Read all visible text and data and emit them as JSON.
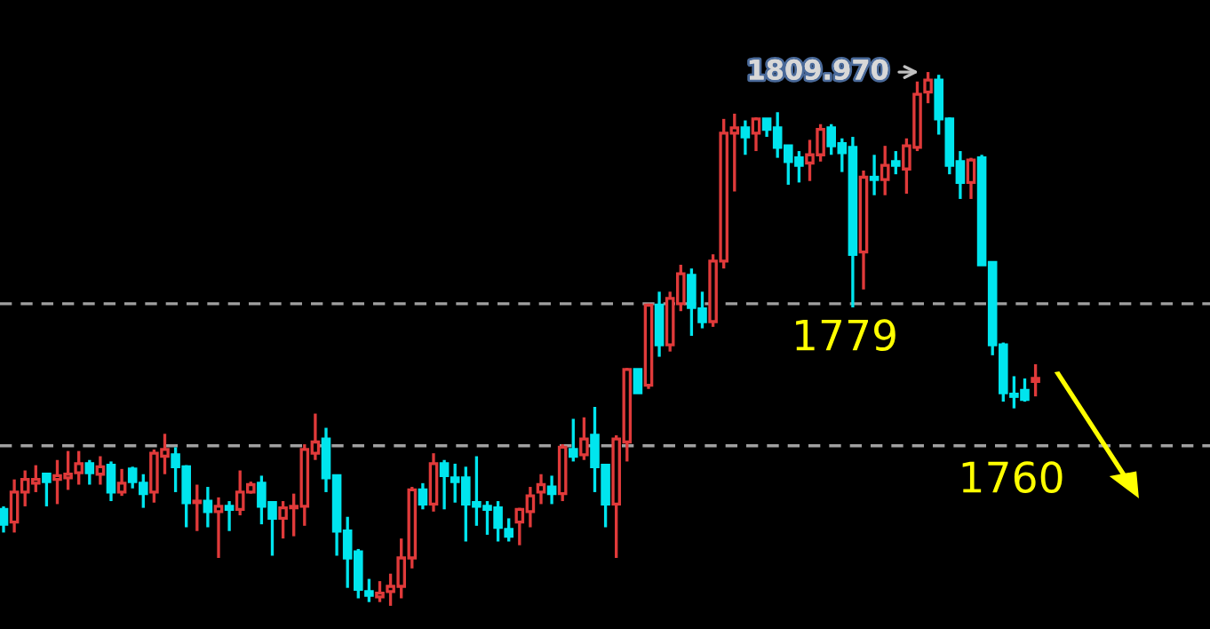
{
  "chart_data": {
    "type": "candlestick",
    "categories": [
      null,
      null,
      null,
      null,
      null,
      null,
      null,
      null,
      null,
      null,
      null,
      null,
      null,
      null,
      null,
      null,
      null,
      null,
      null,
      null,
      null,
      null,
      null,
      null,
      null,
      null,
      null,
      null,
      null,
      null,
      null,
      null,
      null,
      null,
      null,
      null,
      null,
      null,
      null,
      null,
      null,
      null,
      null,
      null,
      null,
      null,
      null,
      null,
      null,
      null,
      null,
      null,
      null,
      null,
      null,
      null,
      null,
      null,
      null,
      null,
      null,
      null,
      null,
      null,
      null,
      null,
      null,
      null,
      null,
      null,
      null,
      null,
      null,
      null,
      null,
      null,
      null,
      null,
      null,
      null,
      null,
      null,
      null,
      null,
      null,
      null,
      null,
      null,
      null,
      null,
      null,
      null,
      null,
      null,
      null,
      null,
      null
    ],
    "ohlc": [
      [
        1751.5,
        1751.9,
        1748.4,
        1749.5
      ],
      [
        1749.8,
        1755.5,
        1748.4,
        1753.8
      ],
      [
        1753.8,
        1756.7,
        1751.9,
        1755.5
      ],
      [
        1755.0,
        1757.4,
        1753.8,
        1755.5
      ],
      [
        1756.2,
        1756.2,
        1751.9,
        1755.2
      ],
      [
        1755.5,
        1758.1,
        1752.2,
        1756.0
      ],
      [
        1755.7,
        1759.3,
        1754.1,
        1756.2
      ],
      [
        1756.4,
        1759.3,
        1754.8,
        1757.6
      ],
      [
        1757.6,
        1758.1,
        1754.8,
        1756.4
      ],
      [
        1756.2,
        1758.6,
        1754.8,
        1757.2
      ],
      [
        1757.4,
        1757.9,
        1752.6,
        1753.8
      ],
      [
        1753.8,
        1756.9,
        1753.3,
        1755.0
      ],
      [
        1756.9,
        1757.2,
        1754.3,
        1755.2
      ],
      [
        1755.0,
        1756.2,
        1751.7,
        1753.6
      ],
      [
        1753.8,
        1759.5,
        1752.4,
        1759.0
      ],
      [
        1758.6,
        1761.6,
        1756.2,
        1759.5
      ],
      [
        1758.8,
        1759.8,
        1753.8,
        1757.2
      ],
      [
        1757.2,
        1757.4,
        1749.1,
        1752.4
      ],
      [
        1752.4,
        1754.8,
        1748.6,
        1752.6
      ],
      [
        1752.6,
        1754.5,
        1749.1,
        1751.2
      ],
      [
        1751.2,
        1753.1,
        1745.0,
        1751.9
      ],
      [
        1751.9,
        1752.6,
        1748.6,
        1751.5
      ],
      [
        1751.5,
        1756.7,
        1750.7,
        1753.8
      ],
      [
        1753.8,
        1755.2,
        1753.6,
        1754.8
      ],
      [
        1755.0,
        1756.0,
        1749.5,
        1751.9
      ],
      [
        1752.4,
        1752.4,
        1745.3,
        1750.3
      ],
      [
        1750.3,
        1752.6,
        1747.6,
        1751.7
      ],
      [
        1751.7,
        1753.6,
        1747.9,
        1751.9
      ],
      [
        1751.9,
        1760.2,
        1749.3,
        1759.5
      ],
      [
        1759.0,
        1764.3,
        1758.1,
        1760.5
      ],
      [
        1760.9,
        1762.4,
        1753.8,
        1755.7
      ],
      [
        1756.0,
        1756.0,
        1745.3,
        1748.6
      ],
      [
        1748.6,
        1750.5,
        1741.0,
        1745.0
      ],
      [
        1745.8,
        1746.2,
        1739.6,
        1740.8
      ],
      [
        1740.5,
        1742.2,
        1739.1,
        1740.0
      ],
      [
        1739.8,
        1741.9,
        1739.1,
        1740.3
      ],
      [
        1740.5,
        1742.9,
        1738.6,
        1741.2
      ],
      [
        1741.2,
        1747.6,
        1739.6,
        1745.0
      ],
      [
        1745.0,
        1754.5,
        1743.6,
        1754.1
      ],
      [
        1754.1,
        1755.0,
        1751.5,
        1752.2
      ],
      [
        1752.2,
        1759.0,
        1751.2,
        1757.6
      ],
      [
        1757.6,
        1758.1,
        1751.5,
        1756.0
      ],
      [
        1755.7,
        1757.6,
        1752.4,
        1755.2
      ],
      [
        1755.7,
        1757.2,
        1747.2,
        1752.2
      ],
      [
        1752.4,
        1758.6,
        1749.3,
        1751.9
      ],
      [
        1751.9,
        1752.6,
        1748.1,
        1751.5
      ],
      [
        1751.7,
        1752.6,
        1747.2,
        1749.1
      ],
      [
        1748.8,
        1750.3,
        1747.2,
        1747.9
      ],
      [
        1749.8,
        1751.7,
        1746.7,
        1751.5
      ],
      [
        1751.2,
        1754.5,
        1749.1,
        1753.3
      ],
      [
        1753.8,
        1756.2,
        1752.2,
        1754.8
      ],
      [
        1754.5,
        1756.0,
        1752.2,
        1753.6
      ],
      [
        1753.6,
        1760.2,
        1752.6,
        1759.8
      ],
      [
        1759.5,
        1763.6,
        1757.9,
        1758.6
      ],
      [
        1758.8,
        1763.8,
        1758.1,
        1760.9
      ],
      [
        1761.4,
        1765.2,
        1753.8,
        1757.2
      ],
      [
        1757.4,
        1757.4,
        1749.1,
        1752.2
      ],
      [
        1752.2,
        1761.4,
        1745.0,
        1760.9
      ],
      [
        1760.5,
        1770.4,
        1757.9,
        1770.2
      ],
      [
        1770.2,
        1770.2,
        1767.1,
        1767.1
      ],
      [
        1768.1,
        1779.0,
        1767.6,
        1778.8
      ],
      [
        1778.8,
        1780.6,
        1771.9,
        1773.5
      ],
      [
        1773.5,
        1780.6,
        1772.6,
        1779.7
      ],
      [
        1779.0,
        1784.2,
        1778.0,
        1783.0
      ],
      [
        1782.8,
        1783.7,
        1774.7,
        1778.5
      ],
      [
        1778.3,
        1780.6,
        1775.7,
        1776.6
      ],
      [
        1776.6,
        1785.6,
        1775.9,
        1784.7
      ],
      [
        1784.7,
        1803.7,
        1783.7,
        1801.8
      ],
      [
        1801.8,
        1804.4,
        1794.0,
        1802.5
      ],
      [
        1802.5,
        1803.5,
        1798.9,
        1801.3
      ],
      [
        1801.8,
        1803.9,
        1799.4,
        1803.7
      ],
      [
        1803.7,
        1803.7,
        1801.3,
        1802.3
      ],
      [
        1802.5,
        1804.6,
        1798.5,
        1799.9
      ],
      [
        1800.1,
        1800.1,
        1794.9,
        1798.0
      ],
      [
        1798.5,
        1799.4,
        1795.2,
        1797.5
      ],
      [
        1797.8,
        1800.9,
        1795.4,
        1798.9
      ],
      [
        1798.9,
        1803.0,
        1798.0,
        1802.3
      ],
      [
        1802.5,
        1803.0,
        1798.9,
        1800.1
      ],
      [
        1800.4,
        1801.1,
        1796.6,
        1799.2
      ],
      [
        1799.9,
        1801.3,
        1778.5,
        1785.6
      ],
      [
        1785.9,
        1796.8,
        1780.9,
        1795.9
      ],
      [
        1795.9,
        1798.9,
        1793.5,
        1795.6
      ],
      [
        1795.6,
        1800.1,
        1793.5,
        1797.5
      ],
      [
        1798.0,
        1799.4,
        1796.3,
        1797.5
      ],
      [
        1797.0,
        1801.1,
        1793.7,
        1800.1
      ],
      [
        1799.9,
        1808.7,
        1799.4,
        1807.0
      ],
      [
        1807.3,
        1809.97,
        1805.8,
        1808.9
      ],
      [
        1808.9,
        1809.6,
        1801.6,
        1803.7
      ],
      [
        1803.7,
        1803.9,
        1796.3,
        1797.5
      ],
      [
        1798.0,
        1799.4,
        1793.0,
        1795.2
      ],
      [
        1795.2,
        1798.5,
        1793.0,
        1798.2
      ],
      [
        1798.5,
        1798.9,
        1784.2,
        1784.2
      ],
      [
        1784.5,
        1784.5,
        1772.1,
        1773.5
      ],
      [
        1773.5,
        1773.8,
        1765.9,
        1767.1
      ],
      [
        1766.9,
        1769.3,
        1765.0,
        1766.6
      ],
      [
        1767.4,
        1769.0,
        1765.9,
        1766.2
      ],
      [
        1768.6,
        1770.9,
        1766.6,
        1769.0
      ]
    ],
    "colors": [
      "#00e5ee",
      "#e03a3a",
      "#e03a3a",
      "#e03a3a",
      "#00e5ee",
      "#e03a3a",
      "#e03a3a",
      "#e03a3a",
      "#00e5ee",
      "#e03a3a",
      "#00e5ee",
      "#e03a3a",
      "#00e5ee",
      "#00e5ee",
      "#e03a3a",
      "#e03a3a",
      "#00e5ee",
      "#00e5ee",
      "#e03a3a",
      "#00e5ee",
      "#e03a3a",
      "#00e5ee",
      "#e03a3a",
      "#e03a3a",
      "#00e5ee",
      "#00e5ee",
      "#e03a3a",
      "#e03a3a",
      "#e03a3a",
      "#e03a3a",
      "#00e5ee",
      "#00e5ee",
      "#00e5ee",
      "#00e5ee",
      "#00e5ee",
      "#e03a3a",
      "#e03a3a",
      "#e03a3a",
      "#e03a3a",
      "#00e5ee",
      "#e03a3a",
      "#00e5ee",
      "#00e5ee",
      "#00e5ee",
      "#00e5ee",
      "#00e5ee",
      "#00e5ee",
      "#00e5ee",
      "#e03a3a",
      "#e03a3a",
      "#e03a3a",
      "#00e5ee",
      "#e03a3a",
      "#00e5ee",
      "#e03a3a",
      "#00e5ee",
      "#00e5ee",
      "#e03a3a",
      "#e03a3a",
      "#00e5ee",
      "#e03a3a",
      "#00e5ee",
      "#e03a3a",
      "#e03a3a",
      "#00e5ee",
      "#00e5ee",
      "#e03a3a",
      "#e03a3a",
      "#e03a3a",
      "#00e5ee",
      "#e03a3a",
      "#00e5ee",
      "#00e5ee",
      "#00e5ee",
      "#00e5ee",
      "#e03a3a",
      "#e03a3a",
      "#00e5ee",
      "#00e5ee",
      "#00e5ee",
      "#e03a3a",
      "#00e5ee",
      "#e03a3a",
      "#00e5ee",
      "#e03a3a",
      "#e03a3a",
      "#e03a3a",
      "#00e5ee",
      "#00e5ee",
      "#00e5ee",
      "#e03a3a",
      "#00e5ee",
      "#00e5ee",
      "#00e5ee",
      "#00e5ee",
      "#00e5ee",
      "#e03a3a"
    ],
    "ylim": [
      1735.5,
      1819.6
    ],
    "grid": false,
    "ref_lines": [
      {
        "axis": "y",
        "value": 1779,
        "label": "1779",
        "color": "#a0a0a0",
        "line_style": "dashed"
      },
      {
        "axis": "y",
        "value": 1760,
        "label": "1760",
        "color": "#a0a0a0",
        "line_style": "dashed"
      }
    ],
    "annotations": [
      "1809.970"
    ]
  }
}
